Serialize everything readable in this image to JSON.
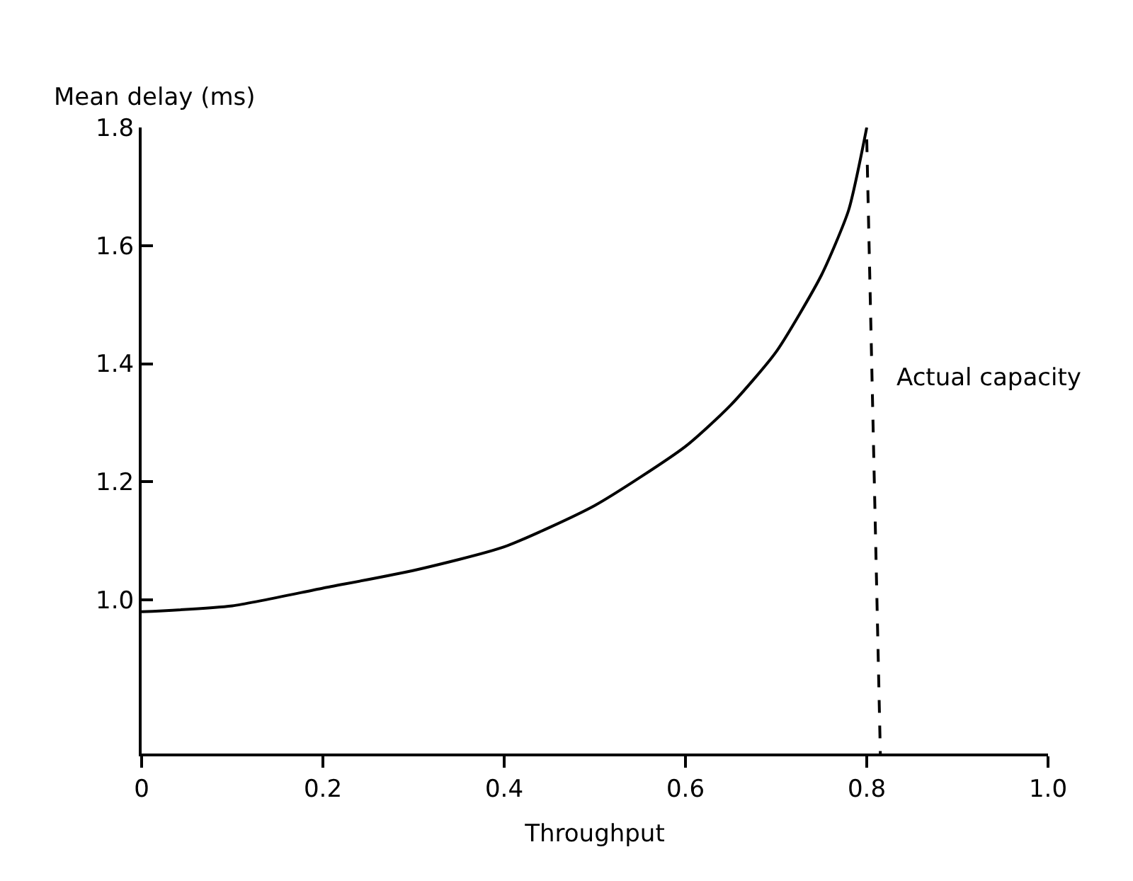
{
  "chart_data": {
    "type": "line",
    "xlabel": "Throughput",
    "ylabel": "Mean delay (ms)",
    "xlim": [
      0,
      1.0
    ],
    "ylim": [
      0.74,
      1.8
    ],
    "xticks": [
      0,
      0.2,
      0.4,
      0.6,
      0.8,
      {
        "value": 1.0,
        "label": "1.0"
      }
    ],
    "yticks": [
      {
        "value": 1.0,
        "label": "1.0"
      },
      1.2,
      1.4,
      1.6,
      1.8
    ],
    "grid": false,
    "marker": "none",
    "series": [
      {
        "color": "#000000",
        "line_style": "solid",
        "x": [
          0,
          0.1,
          0.2,
          0.3,
          0.4,
          0.5,
          0.6,
          0.65,
          0.7,
          0.75,
          0.78,
          0.8
        ],
        "values": [
          0.98,
          0.99,
          1.02,
          1.05,
          1.09,
          1.16,
          1.26,
          1.33,
          1.42,
          1.55,
          1.66,
          1.8
        ]
      },
      {
        "color": "#000000",
        "line_style": "dashed",
        "x": [
          0.8,
          0.815
        ],
        "values": [
          1.78,
          0.74
        ]
      }
    ],
    "annotations": [
      "Actual capacity"
    ]
  }
}
